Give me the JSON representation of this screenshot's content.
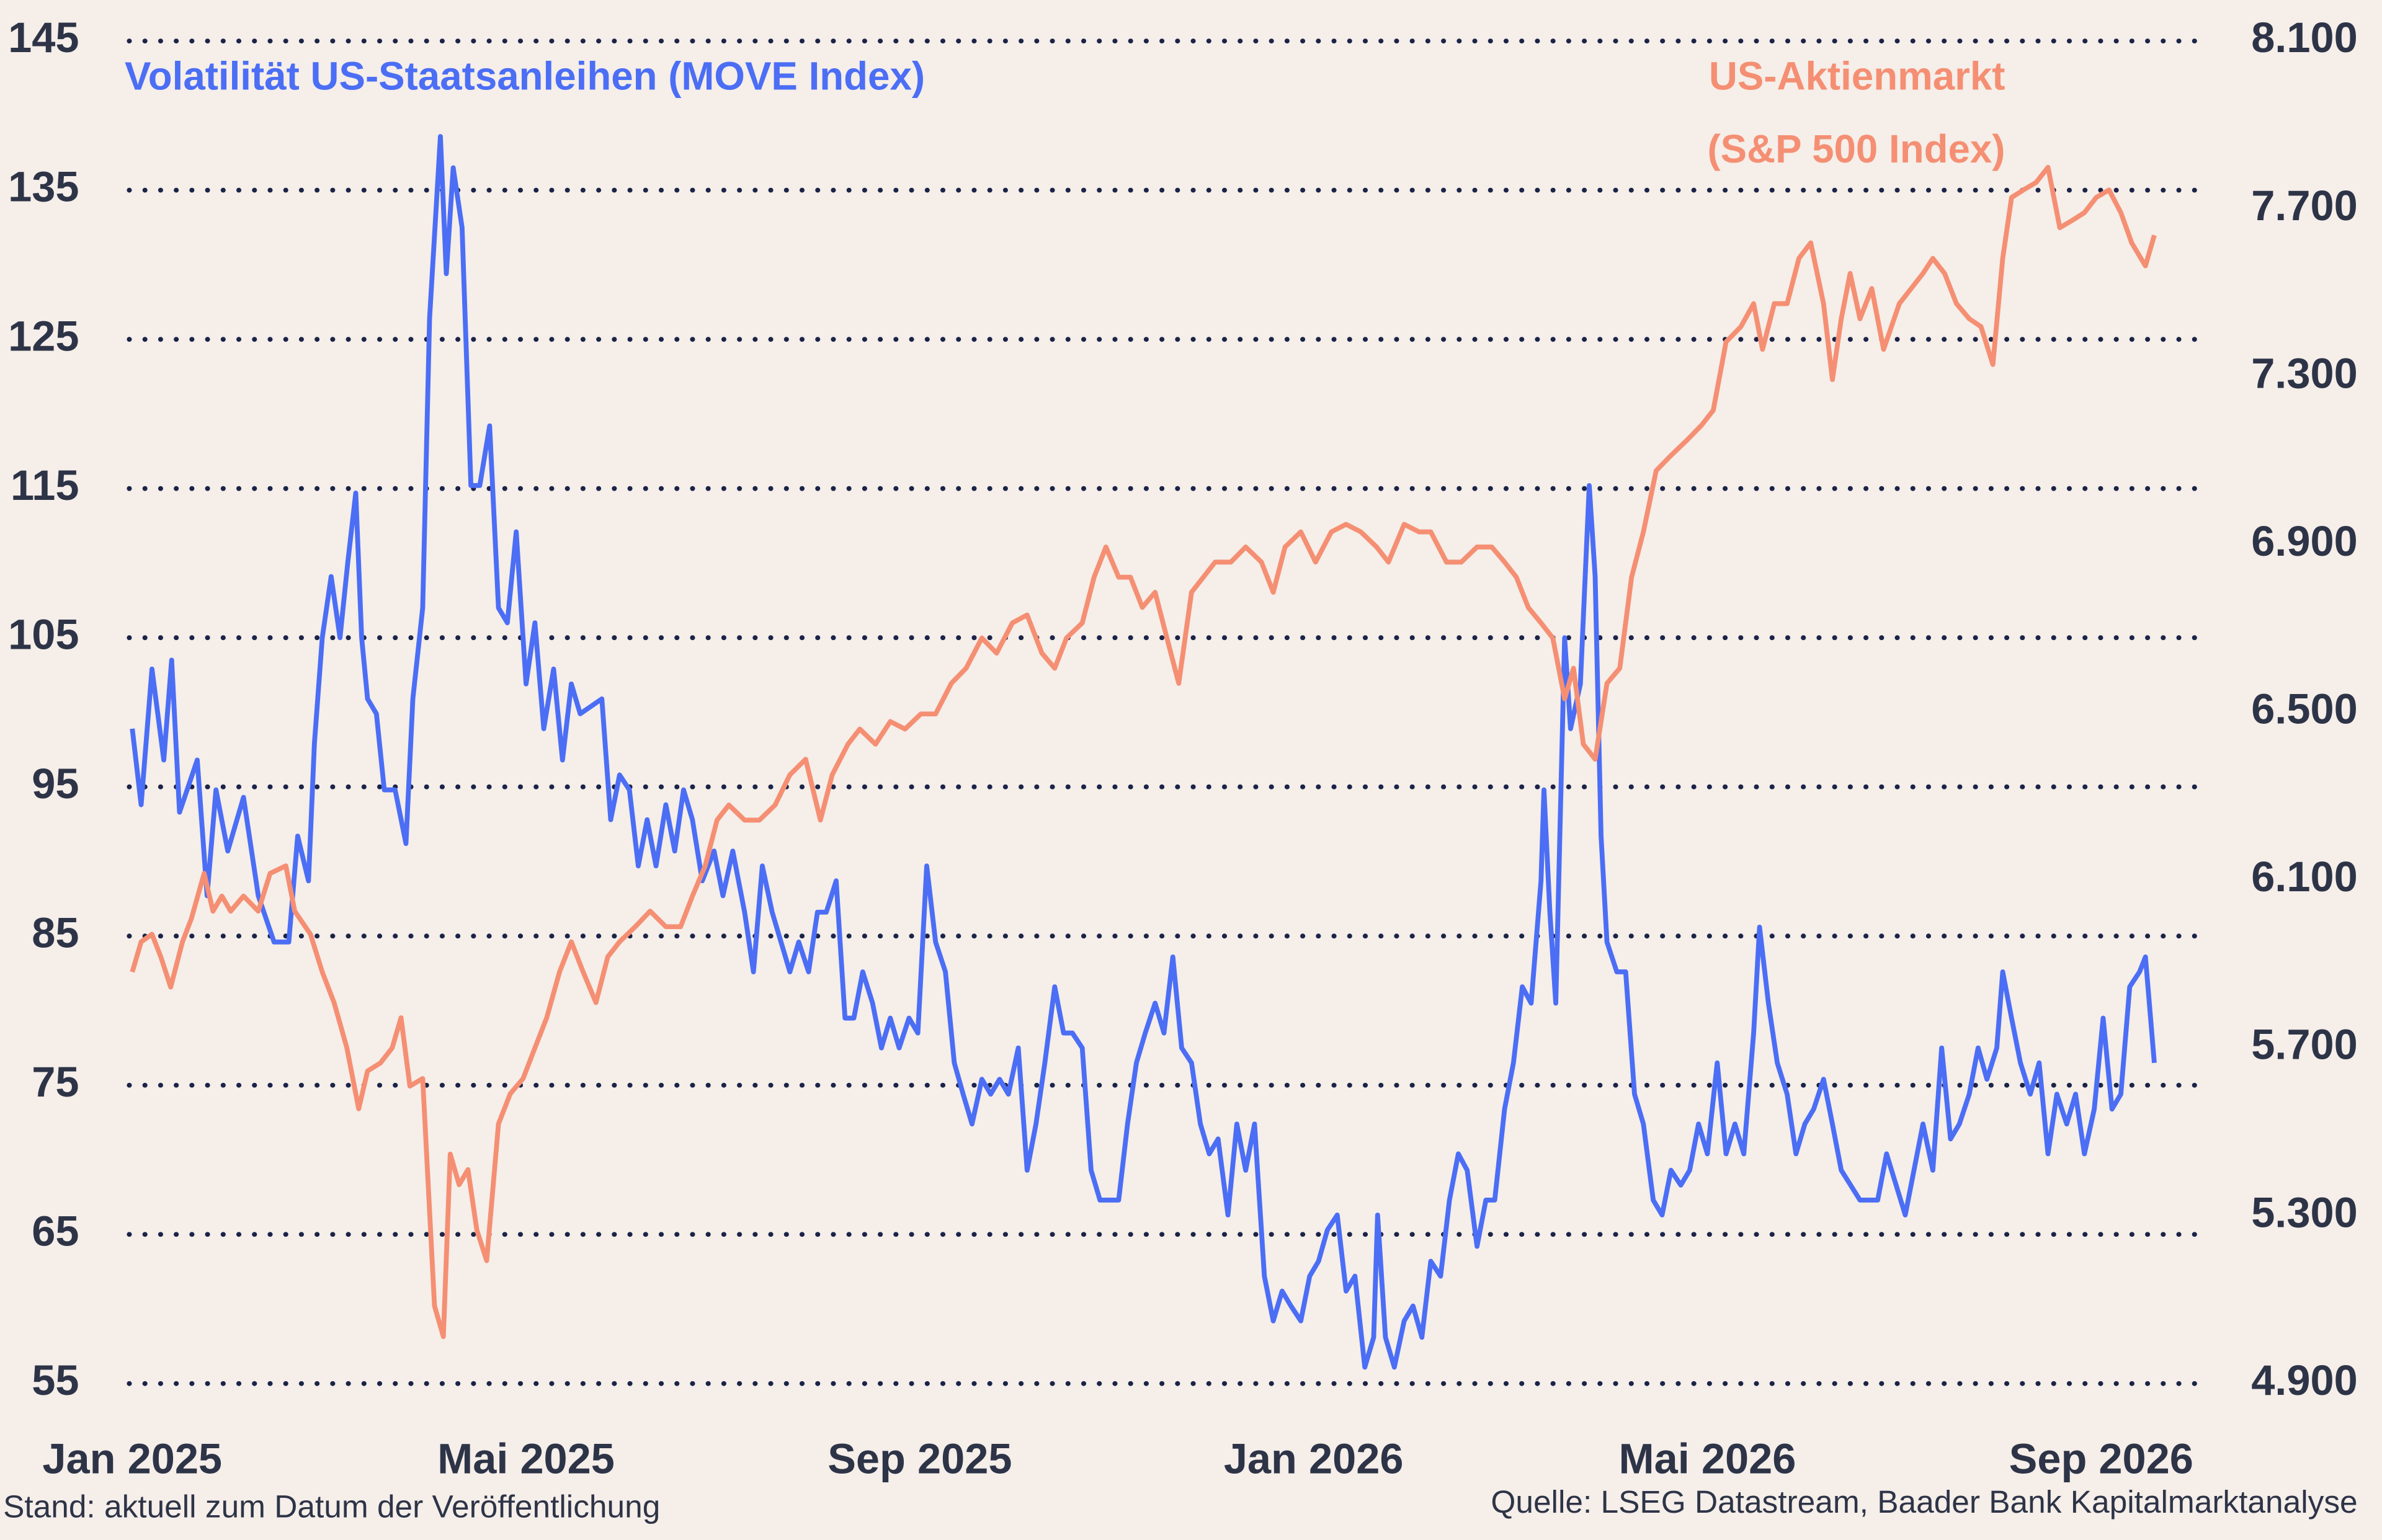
{
  "chart_data": {
    "type": "line",
    "note": "Stand: aktuell zum Datum der Veröffentlichung",
    "source": "Quelle: LSEG Datastream, Baader Bank Kapitalmarktanalyse",
    "xlim": [
      0,
      21
    ],
    "xticks": [
      {
        "value": 0,
        "label": "Jan 2025"
      },
      {
        "value": 4,
        "label": "Mai 2025"
      },
      {
        "value": 8,
        "label": "Sep 2025"
      },
      {
        "value": 12,
        "label": "Jan 2026"
      },
      {
        "value": 16,
        "label": "Mai 2026"
      },
      {
        "value": 20,
        "label": "Sep 2026"
      }
    ],
    "ylim": [
      55,
      145
    ],
    "yticks": [
      55,
      65,
      75,
      85,
      95,
      105,
      115,
      125,
      135,
      145
    ],
    "y2lim": [
      4900,
      8100
    ],
    "y2ticks": [
      {
        "value": 4900,
        "label": "4.900"
      },
      {
        "value": 5300,
        "label": "5.300"
      },
      {
        "value": 5700,
        "label": "5.700"
      },
      {
        "value": 6100,
        "label": "6.100"
      },
      {
        "value": 6500,
        "label": "6.500"
      },
      {
        "value": 6900,
        "label": "6.900"
      },
      {
        "value": 7300,
        "label": "7.300"
      },
      {
        "value": 7700,
        "label": "7.700"
      },
      {
        "value": 8100,
        "label": "8.100"
      }
    ],
    "grid": true,
    "series": [
      {
        "name": "Volatilität US-Staatsanleihen (MOVE Index)",
        "color": "#4b6ef5",
        "axis": "y",
        "x": [
          0,
          0.09,
          0.2,
          0.32,
          0.4,
          0.48,
          0.66,
          0.76,
          0.85,
          0.97,
          1.13,
          1.28,
          1.44,
          1.59,
          1.68,
          1.79,
          1.85,
          1.93,
          2.02,
          2.11,
          2.19,
          2.27,
          2.33,
          2.39,
          2.48,
          2.56,
          2.67,
          2.78,
          2.85,
          2.95,
          3.02,
          3.13,
          3.19,
          3.26,
          3.35,
          3.44,
          3.53,
          3.63,
          3.72,
          3.81,
          3.9,
          4.0,
          4.09,
          4.18,
          4.28,
          4.37,
          4.46,
          4.55,
          4.77,
          4.86,
          4.95,
          5.05,
          5.14,
          5.23,
          5.32,
          5.42,
          5.51,
          5.6,
          5.69,
          5.79,
          5.91,
          6.0,
          6.1,
          6.22,
          6.31,
          6.4,
          6.5,
          6.59,
          6.68,
          6.77,
          6.87,
          6.96,
          7.05,
          7.15,
          7.24,
          7.33,
          7.42,
          7.52,
          7.61,
          7.7,
          7.79,
          7.89,
          7.98,
          8.07,
          8.16,
          8.26,
          8.35,
          8.44,
          8.53,
          8.63,
          8.72,
          8.81,
          8.9,
          9.0,
          9.09,
          9.18,
          9.27,
          9.37,
          9.46,
          9.55,
          9.65,
          9.74,
          9.83,
          10.02,
          10.11,
          10.2,
          10.29,
          10.39,
          10.48,
          10.57,
          10.66,
          10.76,
          10.85,
          10.94,
          11.03,
          11.13,
          11.22,
          11.31,
          11.4,
          11.5,
          11.59,
          11.68,
          11.77,
          11.87,
          11.96,
          12.05,
          12.14,
          12.24,
          12.33,
          12.42,
          12.52,
          12.61,
          12.65,
          12.73,
          12.82,
          12.92,
          13.01,
          13.1,
          13.19,
          13.29,
          13.38,
          13.47,
          13.56,
          13.66,
          13.75,
          13.84,
          13.94,
          14.03,
          14.12,
          14.21,
          14.31,
          14.34,
          14.4,
          14.46,
          14.55,
          14.61,
          14.71,
          14.8,
          14.86,
          14.92,
          14.98,
          15.08,
          15.17,
          15.26,
          15.35,
          15.45,
          15.54,
          15.63,
          15.73,
          15.82,
          15.91,
          16.0,
          16.1,
          16.19,
          16.28,
          16.37,
          16.47,
          16.53,
          16.62,
          16.71,
          16.81,
          16.9,
          16.99,
          17.08,
          17.18,
          17.27,
          17.36,
          17.55,
          17.73,
          17.82,
          18.01,
          18.19,
          18.29,
          18.38,
          18.47,
          18.56,
          18.66,
          18.75,
          18.84,
          18.94,
          19.0,
          19.09,
          19.18,
          19.28,
          19.37,
          19.46,
          19.55,
          19.65,
          19.74,
          19.83,
          19.93,
          20.02,
          20.11,
          20.2,
          20.29,
          20.39,
          20.45,
          20.54
        ],
        "values": [
          98.9,
          93.8,
          102.9,
          96.8,
          103.5,
          93.3,
          96.8,
          87.7,
          94.8,
          90.7,
          94.3,
          87.7,
          84.6,
          84.6,
          91.7,
          88.7,
          97.9,
          105.0,
          109.1,
          105.0,
          110.1,
          114.7,
          105.0,
          100.9,
          99.9,
          94.8,
          94.8,
          91.2,
          100.9,
          107.0,
          126.4,
          138.6,
          129.4,
          136.5,
          132.5,
          115.2,
          115.2,
          119.2,
          107.0,
          106.0,
          112.1,
          101.9,
          106.0,
          98.9,
          102.9,
          96.8,
          101.9,
          99.9,
          100.9,
          92.8,
          95.8,
          94.8,
          89.7,
          92.8,
          89.7,
          93.8,
          90.7,
          94.8,
          92.8,
          88.7,
          90.7,
          87.7,
          90.7,
          86.6,
          82.6,
          89.7,
          86.6,
          84.6,
          82.6,
          84.6,
          82.6,
          86.6,
          86.6,
          88.7,
          79.5,
          79.5,
          82.6,
          80.5,
          77.5,
          79.5,
          77.5,
          79.5,
          78.5,
          89.7,
          84.6,
          82.6,
          76.5,
          74.4,
          72.4,
          75.4,
          74.4,
          75.4,
          74.4,
          77.5,
          69.3,
          72.4,
          76.5,
          81.6,
          78.5,
          78.5,
          77.5,
          69.3,
          67.3,
          67.3,
          72.4,
          76.5,
          78.5,
          80.5,
          78.5,
          83.6,
          77.5,
          76.5,
          72.4,
          70.4,
          71.4,
          66.3,
          72.4,
          69.3,
          72.4,
          62.2,
          59.2,
          61.2,
          60.2,
          59.2,
          62.2,
          63.2,
          65.3,
          66.3,
          61.2,
          62.2,
          56.1,
          58.1,
          66.3,
          58.1,
          56.1,
          59.2,
          60.2,
          58.1,
          63.2,
          62.2,
          67.3,
          70.4,
          69.3,
          64.2,
          67.3,
          67.3,
          73.4,
          76.5,
          81.6,
          80.5,
          88.7,
          94.8,
          86.6,
          80.5,
          105.0,
          98.9,
          101.9,
          115.2,
          109.1,
          91.7,
          84.6,
          82.6,
          82.6,
          74.4,
          72.4,
          67.3,
          66.3,
          69.3,
          68.3,
          69.3,
          72.4,
          70.4,
          76.5,
          70.4,
          72.4,
          70.4,
          78.5,
          85.6,
          80.5,
          76.5,
          74.4,
          70.4,
          72.4,
          73.4,
          75.4,
          72.4,
          69.3,
          67.3,
          67.3,
          70.4,
          66.3,
          72.4,
          69.3,
          77.5,
          71.4,
          72.4,
          74.4,
          77.5,
          75.4,
          77.5,
          82.6,
          79.5,
          76.5,
          74.4,
          76.5,
          70.4,
          74.4,
          72.4,
          74.4,
          70.4,
          73.4,
          79.5,
          73.4,
          74.4,
          81.6,
          82.6,
          83.6,
          76.5
        ]
      },
      {
        "name": "US-Aktienmarkt (S&P 500 Index)",
        "color": "#f58f73",
        "axis": "y2",
        "x": [
          0,
          0.09,
          0.2,
          0.29,
          0.39,
          0.51,
          0.6,
          0.73,
          0.82,
          0.91,
          1.0,
          1.13,
          1.28,
          1.4,
          1.56,
          1.65,
          1.81,
          1.93,
          2.05,
          2.18,
          2.3,
          2.39,
          2.52,
          2.64,
          2.73,
          2.82,
          2.95,
          3.07,
          3.16,
          3.23,
          3.32,
          3.41,
          3.5,
          3.6,
          3.72,
          3.84,
          3.97,
          4.09,
          4.21,
          4.34,
          4.46,
          4.58,
          4.71,
          4.83,
          4.95,
          5.11,
          5.26,
          5.42,
          5.57,
          5.69,
          5.82,
          5.94,
          6.06,
          6.22,
          6.37,
          6.53,
          6.68,
          6.84,
          6.99,
          7.11,
          7.27,
          7.39,
          7.55,
          7.7,
          7.85,
          8.01,
          8.16,
          8.32,
          8.47,
          8.63,
          8.78,
          8.94,
          9.09,
          9.24,
          9.37,
          9.49,
          9.65,
          9.77,
          9.89,
          10.02,
          10.14,
          10.26,
          10.39,
          10.51,
          10.63,
          10.76,
          10.88,
          11.0,
          11.16,
          11.31,
          11.47,
          11.59,
          11.71,
          11.87,
          12.02,
          12.18,
          12.33,
          12.48,
          12.64,
          12.76,
          12.92,
          13.07,
          13.19,
          13.35,
          13.5,
          13.66,
          13.81,
          13.94,
          14.06,
          14.18,
          14.31,
          14.43,
          14.55,
          14.64,
          14.74,
          14.86,
          14.98,
          15.11,
          15.23,
          15.35,
          15.48,
          15.63,
          15.79,
          15.94,
          16.06,
          16.19,
          16.34,
          16.47,
          16.56,
          16.68,
          16.81,
          16.93,
          17.05,
          17.18,
          17.27,
          17.36,
          17.45,
          17.55,
          17.67,
          17.79,
          17.95,
          18.07,
          18.19,
          18.29,
          18.41,
          18.53,
          18.66,
          18.78,
          18.9,
          19.0,
          19.09,
          19.21,
          19.34,
          19.46,
          19.58,
          19.71,
          19.83,
          19.95,
          20.08,
          20.2,
          20.31,
          20.45,
          20.54
        ],
        "values": [
          5881,
          5953,
          5971,
          5917,
          5845,
          5953,
          6008,
          6116,
          6026,
          6062,
          6026,
          6062,
          6026,
          6116,
          6134,
          6026,
          5971,
          5881,
          5808,
          5700,
          5555,
          5645,
          5664,
          5700,
          5772,
          5609,
          5627,
          5085,
          5012,
          5447,
          5374,
          5410,
          5266,
          5193,
          5519,
          5591,
          5627,
          5700,
          5772,
          5881,
          5953,
          5881,
          5808,
          5917,
          5953,
          5989,
          6026,
          5989,
          5989,
          6062,
          6134,
          6243,
          6279,
          6243,
          6243,
          6279,
          6351,
          6388,
          6243,
          6351,
          6424,
          6460,
          6424,
          6478,
          6460,
          6496,
          6496,
          6569,
          6605,
          6677,
          6641,
          6713,
          6732,
          6641,
          6605,
          6677,
          6713,
          6822,
          6894,
          6822,
          6822,
          6750,
          6786,
          6677,
          6569,
          6786,
          6822,
          6858,
          6858,
          6894,
          6858,
          6786,
          6894,
          6930,
          6858,
          6930,
          6948,
          6930,
          6894,
          6858,
          6948,
          6930,
          6930,
          6858,
          6858,
          6894,
          6894,
          6858,
          6822,
          6750,
          6713,
          6677,
          6532,
          6605,
          6424,
          6388,
          6569,
          6605,
          6822,
          6930,
          7076,
          7112,
          7148,
          7184,
          7220,
          7383,
          7419,
          7474,
          7365,
          7474,
          7474,
          7582,
          7619,
          7474,
          7293,
          7438,
          7546,
          7438,
          7510,
          7365,
          7474,
          7510,
          7546,
          7582,
          7546,
          7474,
          7438,
          7419,
          7329,
          7582,
          7727,
          7745,
          7763,
          7799,
          7655,
          7673,
          7691,
          7727,
          7745,
          7691,
          7619,
          7564,
          7637
        ]
      }
    ]
  }
}
